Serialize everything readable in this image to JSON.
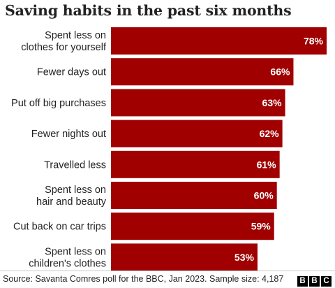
{
  "title": "Saving habits in the past six months",
  "source": "Source: Savanta Comres poll for the BBC, Jan 2023. Sample size: 4,187",
  "logo": [
    "B",
    "B",
    "C"
  ],
  "colors": {
    "bar": "#a00000",
    "bar_label": "#ffffff",
    "text": "#222222"
  },
  "chart_data": {
    "type": "bar",
    "orientation": "horizontal",
    "title": "Saving habits in the past six months",
    "xlim": [
      0,
      100
    ],
    "categories": [
      [
        "Spent less on",
        "clothes for yourself"
      ],
      [
        "Fewer days out"
      ],
      [
        "Put off big purchases"
      ],
      [
        "Fewer nights out"
      ],
      [
        "Travelled less"
      ],
      [
        "Spent less on",
        "hair and beauty"
      ],
      [
        "Cut back on car trips"
      ],
      [
        "Spent less on",
        "children's clothes"
      ]
    ],
    "values": [
      78,
      66,
      63,
      62,
      61,
      60,
      59,
      53
    ],
    "value_labels": [
      "78%",
      "66%",
      "63%",
      "62%",
      "61%",
      "60%",
      "59%",
      "53%"
    ],
    "grid": false,
    "legend": "none"
  }
}
